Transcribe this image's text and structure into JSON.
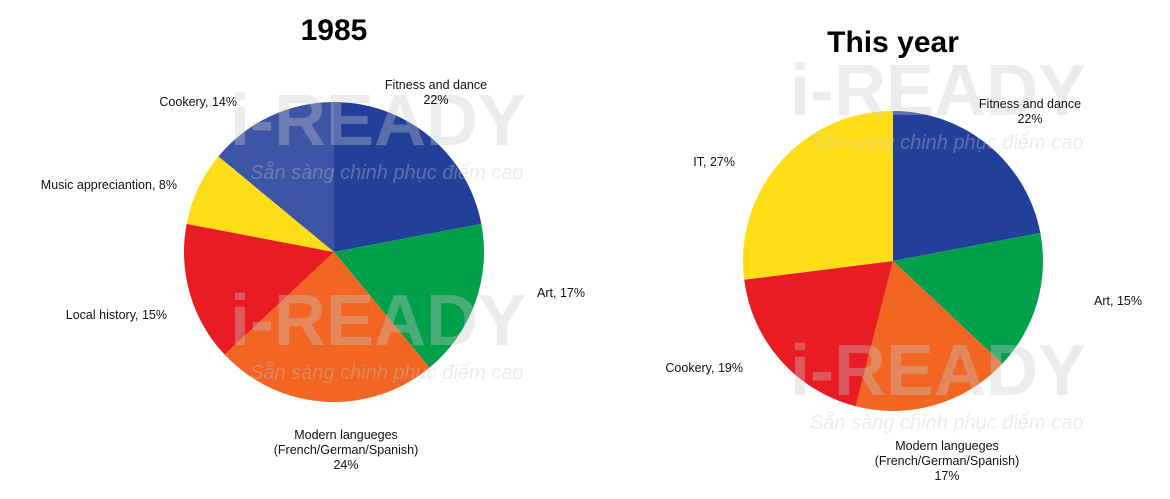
{
  "chart_data": [
    {
      "type": "pie",
      "title": "1985",
      "categories": [
        "Fitness and dance\n",
        "Art,",
        "Modern langueges\n(French/German/Spanish)\n",
        "Local history,",
        "Music appreciantion,",
        "Cookery,"
      ],
      "values": [
        22,
        17,
        24,
        15,
        8,
        14
      ],
      "value_labels": [
        "22%",
        "17%",
        "24%",
        "15%",
        "8%",
        "14%"
      ],
      "colors": [
        "#22409a",
        "#00a04b",
        "#f26522",
        "#e91c24",
        "#ffde17",
        "#3c55a5"
      ]
    },
    {
      "type": "pie",
      "title": "This year",
      "categories": [
        "Fitness and dance\n",
        "Art,",
        "Modern langueges\n(French/German/Spanish)\n",
        "Cookery,",
        "IT,"
      ],
      "values": [
        22,
        15,
        17,
        19,
        27
      ],
      "value_labels": [
        "22%",
        "15%",
        "17%",
        "19%",
        "27%"
      ],
      "colors": [
        "#22409a",
        "#00a04b",
        "#f26522",
        "#e91c24",
        "#ffde17"
      ]
    }
  ],
  "watermark": {
    "brand": "i-READY",
    "tagline": "Sẵn sàng chinh phục điểm cao"
  }
}
